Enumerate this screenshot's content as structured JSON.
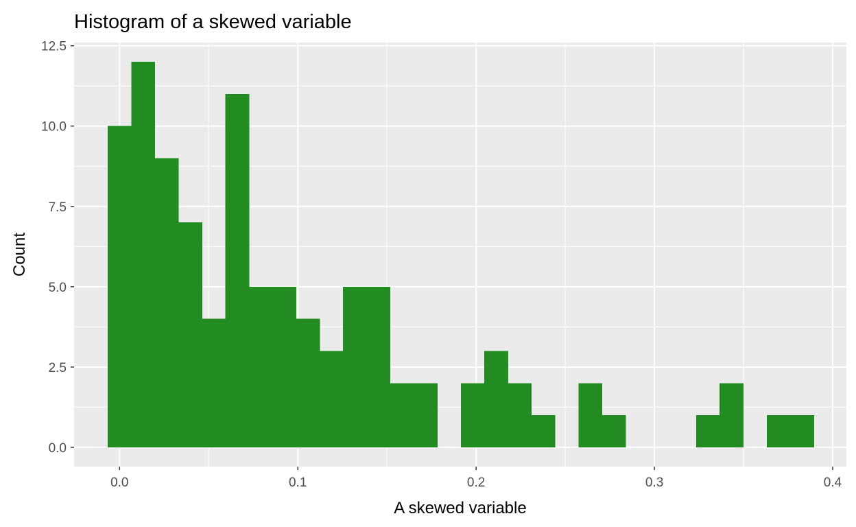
{
  "chart_data": {
    "type": "bar",
    "title": "Histogram of a skewed variable",
    "xlabel": "A skewed variable",
    "ylabel": "Count",
    "xlim": [
      -0.0255,
      0.4077
    ],
    "ylim": [
      -0.6,
      12.6
    ],
    "x_ticks": [
      {
        "value": 0.0,
        "label": "0.0"
      },
      {
        "value": 0.1,
        "label": "0.1"
      },
      {
        "value": 0.2,
        "label": "0.2"
      },
      {
        "value": 0.3,
        "label": "0.3"
      },
      {
        "value": 0.4,
        "label": "0.4"
      }
    ],
    "y_ticks": [
      {
        "value": 0.0,
        "label": "0.0"
      },
      {
        "value": 2.5,
        "label": "2.5"
      },
      {
        "value": 5.0,
        "label": "5.0"
      },
      {
        "value": 7.5,
        "label": "7.5"
      },
      {
        "value": 10.0,
        "label": "10.0"
      },
      {
        "value": 12.5,
        "label": "12.5"
      }
    ],
    "bins": [
      {
        "x0": -0.0066,
        "x1": 0.0066,
        "count": 10
      },
      {
        "x0": 0.0066,
        "x1": 0.0198,
        "count": 12
      },
      {
        "x0": 0.0198,
        "x1": 0.033,
        "count": 9
      },
      {
        "x0": 0.033,
        "x1": 0.0462,
        "count": 7
      },
      {
        "x0": 0.0462,
        "x1": 0.0594,
        "count": 4
      },
      {
        "x0": 0.0594,
        "x1": 0.0726,
        "count": 11
      },
      {
        "x0": 0.0726,
        "x1": 0.0858,
        "count": 5
      },
      {
        "x0": 0.0858,
        "x1": 0.099,
        "count": 5
      },
      {
        "x0": 0.099,
        "x1": 0.1122,
        "count": 4
      },
      {
        "x0": 0.1122,
        "x1": 0.1254,
        "count": 3
      },
      {
        "x0": 0.1254,
        "x1": 0.1386,
        "count": 5
      },
      {
        "x0": 0.1386,
        "x1": 0.1518,
        "count": 5
      },
      {
        "x0": 0.1518,
        "x1": 0.165,
        "count": 2
      },
      {
        "x0": 0.165,
        "x1": 0.1782,
        "count": 2
      },
      {
        "x0": 0.1782,
        "x1": 0.1914,
        "count": 0
      },
      {
        "x0": 0.1914,
        "x1": 0.2046,
        "count": 2
      },
      {
        "x0": 0.2046,
        "x1": 0.2178,
        "count": 3
      },
      {
        "x0": 0.2178,
        "x1": 0.231,
        "count": 2
      },
      {
        "x0": 0.231,
        "x1": 0.2442,
        "count": 1
      },
      {
        "x0": 0.2442,
        "x1": 0.2574,
        "count": 0
      },
      {
        "x0": 0.2574,
        "x1": 0.2706,
        "count": 2
      },
      {
        "x0": 0.2706,
        "x1": 0.2838,
        "count": 1
      },
      {
        "x0": 0.2838,
        "x1": 0.297,
        "count": 0
      },
      {
        "x0": 0.297,
        "x1": 0.3102,
        "count": 0
      },
      {
        "x0": 0.3102,
        "x1": 0.3234,
        "count": 0
      },
      {
        "x0": 0.3234,
        "x1": 0.3366,
        "count": 1
      },
      {
        "x0": 0.3366,
        "x1": 0.3498,
        "count": 2
      },
      {
        "x0": 0.3498,
        "x1": 0.363,
        "count": 0
      },
      {
        "x0": 0.363,
        "x1": 0.3762,
        "count": 1
      },
      {
        "x0": 0.3762,
        "x1": 0.3894,
        "count": 1
      }
    ],
    "bar_color": "#228B22",
    "panel_background": "#EBEBEB",
    "grid": true,
    "grid_color": "#FFFFFF",
    "legend": "none"
  }
}
